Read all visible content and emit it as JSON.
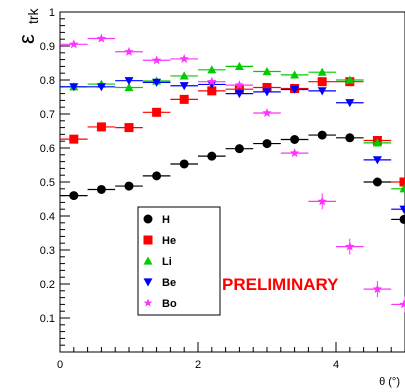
{
  "chart_data": {
    "type": "scatter",
    "xlabel": "θ (°)",
    "ylabel": "ε_trk",
    "xlim": [
      0,
      5
    ],
    "ylim": [
      0,
      1
    ],
    "x_ticks": [
      0,
      2,
      4
    ],
    "y_ticks": [
      0.1,
      0.2,
      0.3,
      0.4,
      0.5,
      0.6,
      0.7,
      0.8,
      0.9
    ],
    "y_max_label": "1",
    "grid": false,
    "legend_position": "center-left",
    "annotation": "PRELIMINARY",
    "annotation_color": "#ff0000",
    "bin_width": 0.4,
    "series": [
      {
        "name": "H",
        "marker": "circle",
        "color": "#000000",
        "x": [
          0.2,
          0.6,
          1.0,
          1.4,
          1.8,
          2.2,
          2.6,
          3.0,
          3.4,
          3.8,
          4.2,
          4.6,
          5.0
        ],
        "y": [
          0.46,
          0.478,
          0.488,
          0.518,
          0.553,
          0.576,
          0.598,
          0.613,
          0.625,
          0.638,
          0.63,
          0.5,
          0.39
        ]
      },
      {
        "name": "He",
        "marker": "square",
        "color": "#ff0000",
        "x": [
          0.2,
          0.6,
          1.0,
          1.4,
          1.8,
          2.2,
          2.6,
          3.0,
          3.4,
          3.8,
          4.2,
          4.6,
          5.0
        ],
        "y": [
          0.626,
          0.662,
          0.66,
          0.705,
          0.743,
          0.768,
          0.773,
          0.778,
          0.775,
          0.795,
          0.795,
          0.622,
          0.5
        ]
      },
      {
        "name": "Li",
        "marker": "triangle-up",
        "color": "#00cc00",
        "x": [
          0.2,
          0.6,
          1.0,
          1.4,
          1.8,
          2.2,
          2.6,
          3.0,
          3.4,
          3.8,
          4.2,
          4.6,
          5.0
        ],
        "y": [
          0.78,
          0.788,
          0.778,
          0.797,
          0.812,
          0.83,
          0.84,
          0.825,
          0.815,
          0.823,
          0.8,
          0.615,
          0.48
        ]
      },
      {
        "name": "Be",
        "marker": "triangle-down",
        "color": "#0000ff",
        "x": [
          0.2,
          0.6,
          1.0,
          1.4,
          1.8,
          2.2,
          2.6,
          3.0,
          3.4,
          3.8,
          4.2,
          4.6,
          5.0
        ],
        "y": [
          0.78,
          0.78,
          0.798,
          0.793,
          0.783,
          0.787,
          0.76,
          0.765,
          0.772,
          0.768,
          0.733,
          0.565,
          0.42
        ]
      },
      {
        "name": "Bo",
        "marker": "star",
        "color": "#ff33ff",
        "x": [
          0.2,
          0.6,
          1.0,
          1.4,
          1.8,
          2.2,
          2.6,
          3.0,
          3.4,
          3.8,
          4.2,
          4.6,
          5.0
        ],
        "y": [
          0.905,
          0.922,
          0.883,
          0.858,
          0.862,
          0.795,
          0.785,
          0.703,
          0.585,
          0.443,
          0.31,
          0.185,
          0.14
        ]
      }
    ]
  }
}
